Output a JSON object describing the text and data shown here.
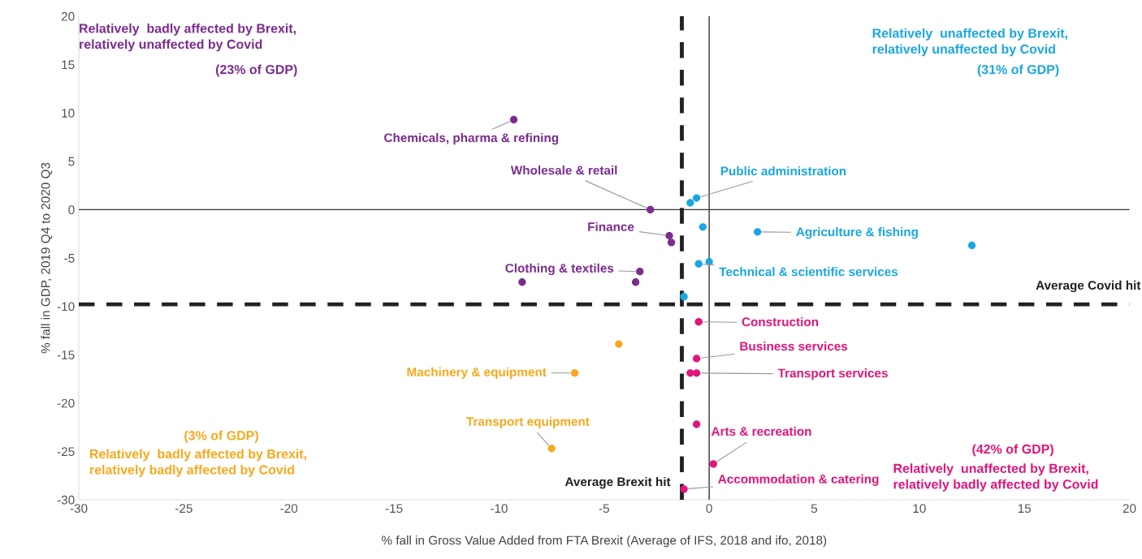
{
  "chart_data": {
    "type": "scatter",
    "xlabel": "% fall in Gross Value Added from FTA Brexit (Average of IFS, 2018 and ifo, 2018)",
    "ylabel": "% fall in GDP, 2019 Q4 to 2020 Q3",
    "xlim": [
      -30,
      20
    ],
    "ylim": [
      -30,
      20
    ],
    "xticks": [
      -30,
      -25,
      -20,
      -15,
      -10,
      -5,
      0,
      5,
      10,
      15,
      20
    ],
    "yticks": [
      -30,
      -25,
      -20,
      -15,
      -10,
      -5,
      0,
      5,
      10,
      15,
      20
    ],
    "grid": false,
    "marker": "circle",
    "series": [
      {
        "color": "#7b2d8e",
        "x": [
          -9.3,
          -2.8,
          -1.9,
          -1.8,
          -3.3,
          -3.5,
          -8.9
        ],
        "values": [
          9.3,
          0,
          -2.7,
          -3.4,
          -6.4,
          -7.5,
          -7.5
        ]
      },
      {
        "color": "#1aa7e0",
        "x": [
          -0.9,
          -0.6,
          -0.3,
          2.3,
          12.5,
          -0.5,
          0.0,
          -1.2
        ],
        "values": [
          0.7,
          1.2,
          -1.8,
          -2.3,
          -3.7,
          -5.6,
          -5.4,
          -9.0
        ]
      },
      {
        "color": "#f9a81b",
        "x": [
          -4.3,
          -6.4,
          -7.5
        ],
        "values": [
          -13.9,
          -16.9,
          -24.7
        ]
      },
      {
        "color": "#e0157a",
        "x": [
          -0.5,
          -0.6,
          -0.9,
          -0.6,
          -0.6,
          0.2,
          -1.2
        ],
        "values": [
          -11.6,
          -15.4,
          -16.9,
          -16.9,
          -22.2,
          -26.3,
          -28.9
        ]
      }
    ],
    "ref_lines": [
      {
        "axis": "x",
        "value": 0,
        "color": "#333333",
        "line_style": "solid"
      },
      {
        "axis": "y",
        "value": 0,
        "color": "#333333",
        "line_style": "solid"
      },
      {
        "axis": "x",
        "value": -1.3,
        "label": "Average Brexit hit",
        "color": "#222222",
        "line_style": "dashed"
      },
      {
        "axis": "y",
        "value": -9.8,
        "label": "Average Covid hit",
        "color": "#222222",
        "line_style": "dashed"
      }
    ],
    "annotations": [
      "Relatively  badly affected by Brexit,\nrelatively unaffected by Covid",
      "(23% of GDP)",
      "Relatively  unaffected by Brexit,\nrelatively unaffected by Covid",
      "(31% of GDP)",
      "Relatively  badly affected by Brexit,\nrelatively badly affected by Covid",
      "(3% of GDP)",
      "Relatively  unaffected by Brexit,\nrelatively badly affected by Covid",
      "(42% of GDP)",
      {
        "text": "Chemicals, pharma & refining",
        "x": -9.3,
        "y": 9.3
      },
      {
        "text": "Wholesale & retail",
        "x": -2.8,
        "y": 0
      },
      {
        "text": "Finance",
        "x": -1.9,
        "y": -2.7
      },
      {
        "text": "Clothing & textiles",
        "x": -3.3,
        "y": -6.4
      },
      {
        "text": "Public administration",
        "x": -0.6,
        "y": 1.2
      },
      {
        "text": "Agriculture & fishing",
        "x": 2.3,
        "y": -2.3
      },
      {
        "text": "Technical & scientific services",
        "x": -0.5,
        "y": -5.6
      },
      {
        "text": "Construction",
        "x": -0.5,
        "y": -11.6
      },
      {
        "text": "Business services",
        "x": -0.6,
        "y": -15.4
      },
      {
        "text": "Transport services",
        "x": -0.6,
        "y": -16.9
      },
      {
        "text": "Arts & recreation",
        "x": 0.2,
        "y": -26.3
      },
      {
        "text": "Accommodation & catering",
        "x": -1.2,
        "y": -28.9
      },
      {
        "text": "Machinery & equipment",
        "x": -6.4,
        "y": -16.9
      },
      {
        "text": "Transport equipment",
        "x": -7.5,
        "y": -24.7
      }
    ]
  }
}
